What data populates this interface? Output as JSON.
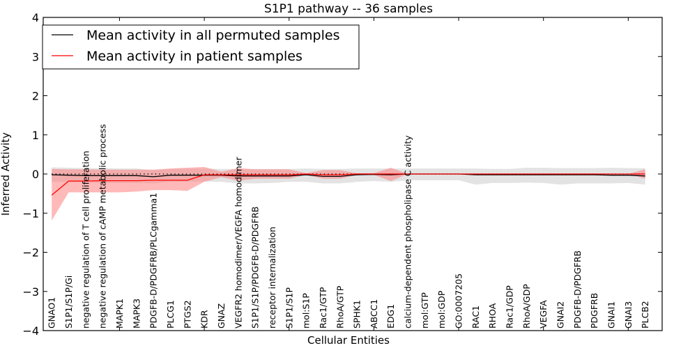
{
  "chart_data": {
    "type": "line",
    "title": "S1P1 pathway -- 36 samples",
    "xlabel": "Cellular Entities",
    "ylabel": "Inferred Activity",
    "ylim": [
      -4,
      4
    ],
    "xlim": [
      0.5,
      37
    ],
    "yticks": [
      -4,
      -3,
      -2,
      -1,
      0,
      1,
      2,
      3,
      4
    ],
    "ytick_labels": [
      "−4",
      "−3",
      "−2",
      "−1",
      "0",
      "1",
      "2",
      "3",
      "4"
    ],
    "xticks_minor": [
      5,
      10,
      15,
      20,
      25,
      30,
      35
    ],
    "grid": false,
    "legend": {
      "placement": "top-left",
      "entries": [
        {
          "label": "Mean activity in all permuted samples",
          "color": "#000000"
        },
        {
          "label": "Mean activity in patient samples",
          "color": "#ff0000"
        }
      ]
    },
    "zero_line": {
      "style": "dotted",
      "color": "#000000",
      "value": 0
    },
    "categories": [
      "GNAO1",
      "S1P1/S1P/Gi",
      "negative regulation of T cell proliferation",
      "negative regulation of cAMP metabolic process",
      "MAPK1",
      "MAPK3",
      "PDGFB-D/PDGFRB/PLCgamma1",
      "PLCG1",
      "PTGS2",
      "KDR",
      "GNAZ",
      "VEGFR2 homodimer/VEGFA homodimer",
      "S1P1/S1P/PDGFB-D/PDGFRB",
      "receptor internalization",
      "S1P1/S1P",
      "mol:S1P",
      "Rac1/GTP",
      "RhoA/GTP",
      "SPHK1",
      "ABCC1",
      "EDG1",
      "calcium-dependent phospholipase C activity",
      "mol:GTP",
      "mol:GDP",
      "GO:0007205",
      "RAC1",
      "RHOA",
      "Rac1/GDP",
      "RhoA/GDP",
      "VEGFA",
      "GNAI2",
      "PDGFB-D/PDGFRB",
      "PDGFRB",
      "GNAI1",
      "GNAI3",
      "PLCB2"
    ],
    "series": [
      {
        "name": "Mean activity in all permuted samples",
        "color": "#000000",
        "band_color": "#c8c8c8",
        "values": [
          -0.02,
          -0.03,
          -0.04,
          -0.04,
          -0.04,
          -0.04,
          -0.07,
          -0.03,
          -0.03,
          -0.03,
          -0.03,
          -0.05,
          -0.05,
          -0.05,
          -0.05,
          -0.02,
          -0.06,
          -0.06,
          -0.02,
          -0.01,
          -0.02,
          0.0,
          0.0,
          0.0,
          0.0,
          -0.02,
          -0.02,
          -0.02,
          -0.02,
          -0.02,
          -0.02,
          -0.02,
          -0.02,
          -0.03,
          -0.03,
          -0.05
        ],
        "band_upper": [
          0.17,
          0.16,
          0.15,
          0.15,
          0.14,
          0.14,
          0.1,
          0.13,
          0.14,
          0.14,
          0.13,
          0.13,
          0.13,
          0.13,
          0.13,
          0.14,
          0.13,
          0.13,
          0.14,
          0.14,
          0.14,
          0.14,
          0.14,
          0.14,
          0.14,
          0.14,
          0.13,
          0.13,
          0.16,
          0.16,
          0.15,
          0.15,
          0.15,
          0.16,
          0.15,
          0.15
        ],
        "band_lower": [
          -0.2,
          -0.21,
          -0.22,
          -0.23,
          -0.23,
          -0.23,
          -0.24,
          -0.2,
          -0.2,
          -0.19,
          -0.2,
          -0.24,
          -0.24,
          -0.23,
          -0.2,
          -0.2,
          -0.24,
          -0.24,
          -0.2,
          -0.18,
          -0.2,
          -0.16,
          -0.16,
          -0.16,
          -0.16,
          -0.27,
          -0.23,
          -0.23,
          -0.22,
          -0.23,
          -0.27,
          -0.24,
          -0.24,
          -0.24,
          -0.23,
          -0.27
        ]
      },
      {
        "name": "Mean activity in patient samples",
        "color": "#ff0000",
        "band_color": "#ff8080",
        "values": [
          -0.54,
          -0.18,
          -0.18,
          -0.17,
          -0.17,
          -0.17,
          -0.16,
          -0.16,
          -0.16,
          -0.02,
          -0.02,
          -0.02,
          -0.02,
          -0.02,
          -0.02,
          0.0,
          -0.02,
          -0.02,
          0.0,
          0.0,
          0.0,
          0.0,
          0.0,
          0.0,
          0.0,
          0.0,
          0.0,
          0.0,
          0.0,
          0.0,
          0.0,
          0.0,
          0.0,
          0.0,
          0.0,
          0.0
        ],
        "band_upper": [
          0.13,
          0.12,
          0.12,
          0.11,
          0.11,
          0.11,
          0.11,
          0.14,
          0.16,
          0.18,
          0.06,
          0.15,
          0.12,
          0.12,
          0.12,
          0.02,
          0.1,
          0.1,
          0.02,
          0.02,
          0.16,
          0.0,
          0.0,
          0.0,
          0.0,
          0.0,
          0.0,
          0.0,
          0.0,
          0.0,
          0.0,
          0.0,
          0.0,
          0.0,
          0.0,
          0.12
        ],
        "band_lower": [
          -1.19,
          -0.47,
          -0.47,
          -0.47,
          -0.47,
          -0.45,
          -0.41,
          -0.41,
          -0.43,
          -0.2,
          -0.08,
          -0.17,
          -0.12,
          -0.12,
          -0.12,
          -0.02,
          -0.12,
          -0.12,
          -0.02,
          -0.02,
          -0.18,
          0.0,
          0.0,
          0.0,
          0.0,
          0.0,
          0.0,
          0.0,
          0.0,
          0.0,
          0.0,
          0.0,
          0.0,
          0.0,
          0.0,
          -0.12
        ]
      }
    ]
  }
}
